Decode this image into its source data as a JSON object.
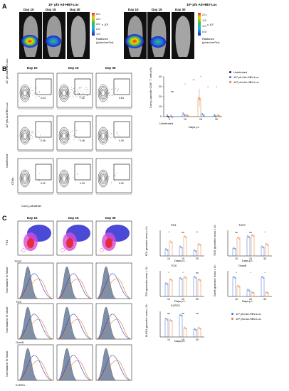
{
  "panelA": {
    "label": "A",
    "group1": "10⁷ pfu Ad-HBV-Luc",
    "group2": "10⁸ pfu Ad-HBV-Luc",
    "days": [
      "Day 10",
      "Day 15",
      "Day 30"
    ],
    "scale1": {
      "values": [
        "5.0",
        "4.0",
        "3.0",
        "2.0",
        "1.0"
      ],
      "exp": "x 10⁶",
      "unit1": "Radiance",
      "unit2": "(p/sec/cm²/sr)"
    },
    "scale2": {
      "values": [
        "2.0",
        "1.5",
        "1.0",
        "0.5"
      ],
      "exp": "x 10⁷",
      "unit1": "Radiance",
      "unit2": "(p/sec/cm²/sr)"
    }
  },
  "panelB": {
    "label": "B",
    "days": [
      "Day 10",
      "Day 15",
      "Day 30"
    ],
    "rows": [
      "10⁷ pfu Ad-HBV-Luc",
      "10⁸ pfu Ad-HBV-Luc",
      "Uninfected"
    ],
    "xaxis": "Core₁₈-Multimer",
    "yaxis": "CD8α",
    "gates": [
      "0.24",
      "7.32",
      "0.63",
      "0.36",
      "0.48",
      "0.29",
      "0.02",
      "0.03",
      "0.02"
    ],
    "legend": [
      "Uninfected",
      "10⁷ pfu Ad-HBV-Luc",
      "10⁸ pfu Ad-HBV-Luc"
    ],
    "chart": {
      "ylabel": "Core₁₈-specific CD8⁺ T cells (%)",
      "xlabel": "Days p.i.",
      "yticks": [
        "40",
        "30",
        "20",
        "10",
        "0"
      ],
      "xticks": [
        "0",
        "10",
        "15",
        "30"
      ],
      "sub": "Uninfected",
      "sig": [
        "ns",
        "*",
        "**",
        "*",
        "*",
        "*"
      ]
    }
  },
  "panelC": {
    "label": "C",
    "days": [
      "Day 10",
      "Day 15",
      "Day 30"
    ],
    "tsne": {
      "y": "PD1",
      "x": "TIGIT"
    },
    "hist_ylabel": "Normalized To Mode",
    "markers": [
      "TOX",
      "GzmB",
      "KLRG1"
    ],
    "charts": [
      {
        "title": "PD1",
        "ylabel": "PD1 geometric mean x 10³",
        "xlabel": "Days p.i.",
        "xticks": [
          "10",
          "15",
          "30"
        ],
        "sig": [
          "*",
          "ns",
          "**"
        ]
      },
      {
        "title": "TIGIT",
        "ylabel": "TIGIT geometric mean x 10³",
        "xlabel": "Days p.i.",
        "xticks": [
          "10",
          "15",
          "30"
        ],
        "sig": [
          "ns",
          "ns",
          "*"
        ]
      },
      {
        "title": "TOX",
        "ylabel": "TOX geometric mean x 10³",
        "xlabel": "Days p.i.",
        "xticks": [
          "10",
          "15",
          "30"
        ],
        "sig": [
          "*",
          "*",
          "ns"
        ]
      },
      {
        "title": "GzmB",
        "ylabel": "GzmB geometric mean x 10³",
        "xlabel": "Days p.i.",
        "xticks": [
          "10",
          "15",
          "30"
        ],
        "sig": [
          "*",
          "*",
          "*"
        ]
      },
      {
        "title": "KLRG1",
        "ylabel": "KLRG1 geometric mean x 10³",
        "xlabel": "Days p.i.",
        "xticks": [
          "10",
          "15",
          "30"
        ],
        "sig": [
          "ns",
          "ns",
          "ns"
        ]
      }
    ],
    "legend": [
      "10⁷ pfu Ad-HBV-Luc",
      "10⁸ pfu Ad-HBV-Luc"
    ]
  },
  "colors": {
    "low": "#3b6fd6",
    "high": "#e07b39",
    "uninf": "#222222"
  }
}
